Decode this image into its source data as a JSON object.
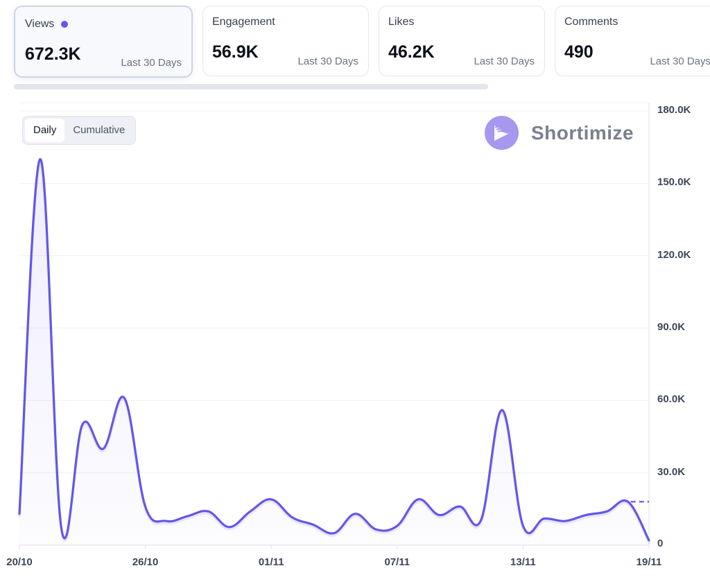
{
  "metrics": [
    {
      "label": "Views",
      "value": "672.3K",
      "period": "Last 30 Days",
      "active": true
    },
    {
      "label": "Engagement",
      "value": "56.9K",
      "period": "Last 30 Days",
      "active": false
    },
    {
      "label": "Likes",
      "value": "46.2K",
      "period": "Last 30 Days",
      "active": false
    },
    {
      "label": "Comments",
      "value": "490",
      "period": "Last 30 Days",
      "active": false
    }
  ],
  "toggle": {
    "options": [
      "Daily",
      "Cumulative"
    ],
    "selected": "Daily"
  },
  "brand": {
    "name": "Shortimize",
    "icon": "play-waves-logo-icon"
  },
  "colors": {
    "line": "#6456e8",
    "accent_dot": "#6456e8",
    "logo_bg": "#a797ee",
    "grid": "#f0f1f4",
    "axis": "#dde2ea"
  },
  "chart_data": {
    "type": "line",
    "title": "",
    "xlabel": "",
    "ylabel": "",
    "series": [
      {
        "name": "Views (Daily)",
        "values": [
          13000,
          160000,
          7000,
          50000,
          40000,
          61000,
          16000,
          10000,
          12000,
          14000,
          7500,
          14000,
          19000,
          11500,
          8500,
          5000,
          13000,
          6500,
          8000,
          19000,
          12500,
          16000,
          10500,
          56000,
          8000,
          11000,
          10000,
          12500,
          14000,
          18000,
          2000
        ]
      }
    ],
    "x": [
      "20/10",
      "21/10",
      "22/10",
      "23/10",
      "24/10",
      "25/10",
      "26/10",
      "27/10",
      "28/10",
      "29/10",
      "30/10",
      "31/10",
      "01/11",
      "02/11",
      "03/11",
      "04/11",
      "05/11",
      "06/11",
      "07/11",
      "08/11",
      "09/11",
      "10/11",
      "11/11",
      "12/11",
      "13/11",
      "14/11",
      "15/11",
      "16/11",
      "17/11",
      "18/11",
      "19/11"
    ],
    "x_tick_labels": [
      "20/10",
      "26/10",
      "01/11",
      "07/11",
      "13/11",
      "19/11"
    ],
    "y_tick_labels": [
      "0",
      "30.0K",
      "60.0K",
      "90.0K",
      "120.0K",
      "150.0K",
      "180.0K"
    ],
    "y_ticks": [
      0,
      30000,
      60000,
      90000,
      120000,
      150000,
      180000
    ],
    "ylim": [
      0,
      180000
    ],
    "reference_line": {
      "value": 18000,
      "style": "dashed",
      "from": "18/11"
    },
    "grid": true,
    "y_axis_side": "right",
    "legend": "none"
  }
}
